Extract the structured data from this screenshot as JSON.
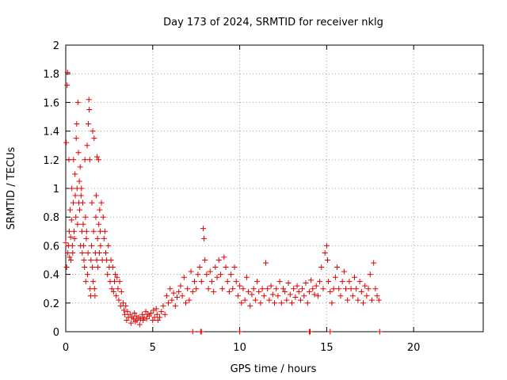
{
  "chart_data": {
    "type": "scatter",
    "title": "Day 173 of 2024, SRMTID for receiver nklg",
    "xlabel": "GPS time / hours",
    "ylabel": "SRMTID / TECUs",
    "xlim": [
      0,
      24
    ],
    "ylim": [
      0,
      2
    ],
    "x_ticks": [
      0,
      5,
      10,
      15,
      20
    ],
    "y_ticks": [
      0,
      0.2,
      0.4,
      0.6,
      0.8,
      1,
      1.2,
      1.4,
      1.6,
      1.8,
      2
    ],
    "x_tick_labels": [
      "0",
      "5",
      "10",
      "15",
      "20"
    ],
    "y_tick_labels": [
      "0",
      "0.2",
      "0.4",
      "0.6",
      "0.8",
      "1",
      "1.2",
      "1.4",
      "1.6",
      "1.8",
      "2"
    ],
    "grid": true,
    "marker": "+",
    "color": "#e00000",
    "series": [
      {
        "name": "SRMTID",
        "points": [
          [
            0.0,
            0.62
          ],
          [
            0.03,
            1.32
          ],
          [
            0.05,
            0.45
          ],
          [
            0.08,
            1.72
          ],
          [
            0.1,
            1.81
          ],
          [
            0.12,
            0.55
          ],
          [
            0.15,
            0.6
          ],
          [
            0.18,
            1.2
          ],
          [
            0.2,
            0.7
          ],
          [
            0.22,
            0.52
          ],
          [
            0.25,
            0.85
          ],
          [
            0.28,
            0.66
          ],
          [
            0.3,
            0.5
          ],
          [
            0.33,
            0.78
          ],
          [
            0.35,
            1.0
          ],
          [
            0.38,
            0.6
          ],
          [
            0.4,
            0.55
          ],
          [
            0.43,
            0.9
          ],
          [
            0.45,
            1.2
          ],
          [
            0.48,
            0.7
          ],
          [
            0.5,
            0.65
          ],
          [
            0.53,
            1.1
          ],
          [
            0.55,
            0.95
          ],
          [
            0.58,
            0.8
          ],
          [
            0.6,
            1.35
          ],
          [
            0.63,
            1.45
          ],
          [
            0.65,
            1.0
          ],
          [
            0.68,
            0.75
          ],
          [
            0.7,
            1.6
          ],
          [
            0.73,
            1.25
          ],
          [
            0.75,
            0.9
          ],
          [
            0.78,
            1.05
          ],
          [
            0.8,
            0.85
          ],
          [
            0.83,
            1.15
          ],
          [
            0.85,
            0.6
          ],
          [
            0.88,
            0.95
          ],
          [
            0.9,
            1.0
          ],
          [
            0.93,
            0.7
          ],
          [
            0.95,
            0.55
          ],
          [
            0.98,
            0.9
          ],
          [
            1.0,
            0.75
          ],
          [
            1.03,
            0.6
          ],
          [
            1.05,
            0.5
          ],
          [
            1.08,
            0.45
          ],
          [
            1.1,
            1.2
          ],
          [
            1.13,
            0.8
          ],
          [
            1.15,
            0.35
          ],
          [
            1.18,
            0.65
          ],
          [
            1.2,
            0.7
          ],
          [
            1.23,
            1.3
          ],
          [
            1.25,
            0.4
          ],
          [
            1.28,
            0.55
          ],
          [
            1.3,
            1.45
          ],
          [
            1.33,
            1.62
          ],
          [
            1.35,
            1.55
          ],
          [
            1.38,
            1.2
          ],
          [
            1.4,
            0.3
          ],
          [
            1.43,
            0.25
          ],
          [
            1.45,
            0.5
          ],
          [
            1.48,
            0.6
          ],
          [
            1.5,
            0.9
          ],
          [
            1.53,
            0.45
          ],
          [
            1.55,
            1.4
          ],
          [
            1.58,
            0.35
          ],
          [
            1.6,
            0.7
          ],
          [
            1.63,
            1.35
          ],
          [
            1.65,
            0.3
          ],
          [
            1.68,
            0.25
          ],
          [
            1.7,
            0.55
          ],
          [
            1.73,
            0.8
          ],
          [
            1.75,
            0.95
          ],
          [
            1.78,
            0.5
          ],
          [
            1.8,
            1.22
          ],
          [
            1.83,
            0.65
          ],
          [
            1.85,
            0.45
          ],
          [
            1.88,
            1.2
          ],
          [
            1.9,
            0.75
          ],
          [
            1.93,
            0.55
          ],
          [
            1.95,
            0.85
          ],
          [
            1.98,
            0.7
          ],
          [
            2.0,
            0.6
          ],
          [
            2.05,
            0.9
          ],
          [
            2.1,
            0.5
          ],
          [
            2.15,
            0.8
          ],
          [
            2.2,
            0.65
          ],
          [
            2.25,
            0.7
          ],
          [
            2.3,
            0.55
          ],
          [
            2.35,
            0.5
          ],
          [
            2.4,
            0.4
          ],
          [
            2.45,
            0.6
          ],
          [
            2.5,
            0.45
          ],
          [
            2.55,
            0.35
          ],
          [
            2.6,
            0.5
          ],
          [
            2.65,
            0.3
          ],
          [
            2.7,
            0.45
          ],
          [
            2.75,
            0.28
          ],
          [
            2.8,
            0.35
          ],
          [
            2.85,
            0.4
          ],
          [
            2.9,
            0.25
          ],
          [
            2.95,
            0.38
          ],
          [
            3.0,
            0.3
          ],
          [
            3.05,
            0.22
          ],
          [
            3.1,
            0.35
          ],
          [
            3.15,
            0.18
          ],
          [
            3.2,
            0.28
          ],
          [
            3.3,
            0.2
          ],
          [
            3.35,
            0.15
          ],
          [
            3.4,
            0.12
          ],
          [
            3.45,
            0.18
          ],
          [
            3.5,
            0.08
          ],
          [
            3.55,
            0.14
          ],
          [
            3.6,
            0.1
          ],
          [
            3.7,
            0.12
          ],
          [
            3.75,
            0.06
          ],
          [
            3.8,
            0.1
          ],
          [
            3.9,
            0.09
          ],
          [
            3.95,
            0.13
          ],
          [
            4.0,
            0.07
          ],
          [
            4.05,
            0.11
          ],
          [
            4.1,
            0.08
          ],
          [
            4.2,
            0.1
          ],
          [
            4.25,
            0.05
          ],
          [
            4.3,
            0.09
          ],
          [
            4.4,
            0.12
          ],
          [
            4.45,
            0.08
          ],
          [
            4.5,
            0.1
          ],
          [
            4.6,
            0.14
          ],
          [
            4.65,
            0.09
          ],
          [
            4.7,
            0.12
          ],
          [
            4.8,
            0.11
          ],
          [
            4.9,
            0.13
          ],
          [
            5.0,
            0.08
          ],
          [
            5.05,
            0.15
          ],
          [
            5.1,
            0.1
          ],
          [
            5.2,
            0.16
          ],
          [
            5.25,
            0.12
          ],
          [
            5.3,
            0.08
          ],
          [
            5.4,
            0.1
          ],
          [
            5.5,
            0.14
          ],
          [
            5.6,
            0.18
          ],
          [
            5.7,
            0.12
          ],
          [
            5.8,
            0.25
          ],
          [
            5.9,
            0.2
          ],
          [
            6.0,
            0.3
          ],
          [
            6.1,
            0.22
          ],
          [
            6.2,
            0.27
          ],
          [
            6.3,
            0.18
          ],
          [
            6.4,
            0.24
          ],
          [
            6.5,
            0.28
          ],
          [
            6.6,
            0.32
          ],
          [
            6.7,
            0.25
          ],
          [
            6.8,
            0.38
          ],
          [
            6.9,
            0.2
          ],
          [
            7.0,
            0.3
          ],
          [
            7.1,
            0.22
          ],
          [
            7.2,
            0.42
          ],
          [
            7.3,
            0.28
          ],
          [
            7.4,
            0.35
          ],
          [
            7.5,
            0.3
          ],
          [
            7.6,
            0.4
          ],
          [
            7.7,
            0.45
          ],
          [
            7.8,
            0.35
          ],
          [
            7.9,
            0.72
          ],
          [
            7.95,
            0.65
          ],
          [
            8.0,
            0.5
          ],
          [
            8.1,
            0.4
          ],
          [
            8.2,
            0.3
          ],
          [
            8.3,
            0.42
          ],
          [
            8.4,
            0.35
          ],
          [
            8.5,
            0.28
          ],
          [
            8.6,
            0.45
          ],
          [
            8.7,
            0.38
          ],
          [
            8.8,
            0.5
          ],
          [
            8.9,
            0.4
          ],
          [
            9.0,
            0.3
          ],
          [
            9.1,
            0.52
          ],
          [
            9.2,
            0.45
          ],
          [
            9.3,
            0.35
          ],
          [
            9.4,
            0.28
          ],
          [
            9.5,
            0.4
          ],
          [
            9.6,
            0.3
          ],
          [
            9.7,
            0.45
          ],
          [
            9.8,
            0.35
          ],
          [
            9.9,
            0.25
          ],
          [
            10.0,
            0.32
          ],
          [
            10.1,
            0.2
          ],
          [
            10.2,
            0.3
          ],
          [
            10.3,
            0.22
          ],
          [
            10.4,
            0.38
          ],
          [
            10.5,
            0.28
          ],
          [
            10.6,
            0.18
          ],
          [
            10.7,
            0.26
          ],
          [
            10.8,
            0.3
          ],
          [
            10.9,
            0.22
          ],
          [
            11.0,
            0.35
          ],
          [
            11.1,
            0.28
          ],
          [
            11.2,
            0.2
          ],
          [
            11.3,
            0.3
          ],
          [
            11.4,
            0.25
          ],
          [
            11.5,
            0.48
          ],
          [
            11.6,
            0.3
          ],
          [
            11.7,
            0.22
          ],
          [
            11.8,
            0.32
          ],
          [
            11.9,
            0.26
          ],
          [
            12.0,
            0.2
          ],
          [
            12.1,
            0.3
          ],
          [
            12.2,
            0.25
          ],
          [
            12.3,
            0.35
          ],
          [
            12.4,
            0.2
          ],
          [
            12.5,
            0.3
          ],
          [
            12.6,
            0.28
          ],
          [
            12.7,
            0.22
          ],
          [
            12.8,
            0.34
          ],
          [
            12.9,
            0.26
          ],
          [
            13.0,
            0.2
          ],
          [
            13.1,
            0.3
          ],
          [
            13.2,
            0.24
          ],
          [
            13.3,
            0.32
          ],
          [
            13.4,
            0.28
          ],
          [
            13.5,
            0.22
          ],
          [
            13.6,
            0.3
          ],
          [
            13.7,
            0.25
          ],
          [
            13.8,
            0.34
          ],
          [
            13.9,
            0.2
          ],
          [
            14.0,
            0.28
          ],
          [
            14.1,
            0.36
          ],
          [
            14.2,
            0.3
          ],
          [
            14.3,
            0.26
          ],
          [
            14.4,
            0.32
          ],
          [
            14.5,
            0.25
          ],
          [
            14.6,
            0.35
          ],
          [
            14.7,
            0.45
          ],
          [
            14.8,
            0.3
          ],
          [
            14.9,
            0.55
          ],
          [
            15.0,
            0.6
          ],
          [
            15.05,
            0.5
          ],
          [
            15.1,
            0.35
          ],
          [
            15.2,
            0.28
          ],
          [
            15.3,
            0.2
          ],
          [
            15.4,
            0.3
          ],
          [
            15.5,
            0.38
          ],
          [
            15.6,
            0.45
          ],
          [
            15.7,
            0.3
          ],
          [
            15.8,
            0.25
          ],
          [
            15.9,
            0.35
          ],
          [
            16.0,
            0.42
          ],
          [
            16.1,
            0.3
          ],
          [
            16.2,
            0.22
          ],
          [
            16.3,
            0.35
          ],
          [
            16.4,
            0.3
          ],
          [
            16.5,
            0.25
          ],
          [
            16.6,
            0.38
          ],
          [
            16.7,
            0.3
          ],
          [
            16.8,
            0.22
          ],
          [
            16.9,
            0.35
          ],
          [
            17.0,
            0.28
          ],
          [
            17.1,
            0.2
          ],
          [
            17.2,
            0.32
          ],
          [
            17.3,
            0.25
          ],
          [
            17.4,
            0.3
          ],
          [
            17.5,
            0.4
          ],
          [
            17.6,
            0.22
          ],
          [
            17.7,
            0.48
          ],
          [
            17.8,
            0.3
          ],
          [
            17.9,
            0.25
          ],
          [
            18.0,
            0.22
          ],
          [
            7.3,
            0.0
          ],
          [
            7.75,
            0.0
          ],
          [
            7.8,
            0.0
          ],
          [
            10.0,
            0.0
          ],
          [
            14.0,
            0.0
          ],
          [
            14.05,
            0.0
          ],
          [
            15.2,
            0.0
          ],
          [
            18.05,
            0.0
          ]
        ]
      }
    ]
  }
}
